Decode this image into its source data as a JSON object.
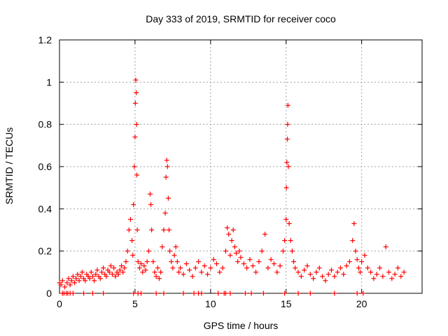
{
  "chart_data": {
    "type": "scatter",
    "title": "Day 333 of 2019, SRMTID for receiver coco",
    "xlabel": "GPS time / hours",
    "ylabel": "SRMTID / TECUs",
    "xlim": [
      0,
      24
    ],
    "ylim": [
      0,
      1.2
    ],
    "xticks": [
      0,
      5,
      10,
      15,
      20
    ],
    "xtick_labels": [
      "0",
      "5",
      "10",
      "15",
      "20"
    ],
    "yticks": [
      0,
      0.2,
      0.4,
      0.6,
      0.8,
      1,
      1.2
    ],
    "ytick_labels": [
      "0",
      "0.2",
      "0.4",
      "0.6",
      "0.8",
      "1",
      "1.2"
    ],
    "grid": true,
    "marker": "+",
    "colors": {
      "points": "#ff0000",
      "grid": "#a0a0a0",
      "axis": "#000000"
    },
    "series": [
      {
        "name": "SRMTID",
        "x": [
          0.0,
          0.1,
          0.2,
          0.35,
          0.5,
          0.6,
          0.7,
          0.8,
          0.9,
          1.0,
          1.1,
          1.2,
          1.3,
          1.4,
          1.5,
          1.6,
          1.7,
          1.8,
          1.9,
          2.0,
          2.1,
          2.2,
          2.3,
          2.4,
          2.5,
          2.6,
          2.7,
          2.8,
          2.9,
          3.0,
          3.1,
          3.2,
          3.3,
          3.4,
          3.5,
          3.6,
          3.7,
          3.8,
          3.9,
          4.0,
          4.1,
          4.2,
          4.3,
          4.4,
          4.5,
          4.6,
          4.7,
          4.8,
          4.85,
          4.9,
          4.95,
          5.0,
          5.02,
          5.05,
          5.08,
          5.1,
          5.12,
          5.15,
          5.2,
          5.3,
          5.4,
          5.5,
          5.6,
          5.7,
          5.8,
          5.9,
          6.0,
          6.05,
          6.1,
          6.2,
          6.3,
          6.4,
          6.5,
          6.6,
          6.7,
          6.8,
          6.9,
          7.0,
          7.05,
          7.1,
          7.15,
          7.2,
          7.25,
          7.3,
          7.4,
          7.5,
          7.6,
          7.7,
          7.8,
          7.9,
          8.0,
          8.2,
          8.4,
          8.6,
          8.8,
          9.0,
          9.2,
          9.4,
          9.6,
          9.8,
          10.0,
          10.2,
          10.4,
          10.6,
          10.8,
          11.0,
          11.1,
          11.2,
          11.3,
          11.4,
          11.5,
          11.6,
          11.7,
          11.8,
          11.9,
          12.0,
          12.2,
          12.4,
          12.6,
          12.8,
          13.0,
          13.2,
          13.4,
          13.6,
          13.8,
          14.0,
          14.2,
          14.4,
          14.6,
          14.8,
          14.9,
          15.0,
          15.02,
          15.05,
          15.08,
          15.1,
          15.12,
          15.15,
          15.2,
          15.3,
          15.4,
          15.5,
          15.6,
          15.8,
          16.0,
          16.2,
          16.4,
          16.6,
          16.8,
          17.0,
          17.2,
          17.4,
          17.6,
          17.8,
          18.0,
          18.2,
          18.4,
          18.6,
          18.8,
          19.0,
          19.2,
          19.4,
          19.5,
          19.6,
          19.7,
          19.8,
          19.9,
          20.0,
          20.2,
          20.4,
          20.6,
          20.8,
          21.0,
          21.2,
          21.4,
          21.6,
          21.8,
          22.0,
          22.2,
          22.4,
          22.6,
          22.8
        ],
        "y": [
          0.05,
          0.04,
          0.06,
          0.03,
          0.05,
          0.07,
          0.04,
          0.06,
          0.08,
          0.05,
          0.07,
          0.09,
          0.06,
          0.08,
          0.1,
          0.07,
          0.06,
          0.09,
          0.08,
          0.07,
          0.1,
          0.08,
          0.06,
          0.09,
          0.11,
          0.08,
          0.07,
          0.1,
          0.12,
          0.09,
          0.08,
          0.11,
          0.1,
          0.13,
          0.09,
          0.12,
          0.08,
          0.1,
          0.09,
          0.11,
          0.13,
          0.1,
          0.12,
          0.15,
          0.2,
          0.3,
          0.35,
          0.25,
          0.18,
          0.42,
          0.6,
          0.74,
          0.9,
          1.01,
          0.95,
          0.8,
          0.56,
          0.3,
          0.15,
          0.12,
          0.14,
          0.1,
          0.13,
          0.11,
          0.15,
          0.2,
          0.47,
          0.42,
          0.3,
          0.15,
          0.1,
          0.08,
          0.12,
          0.07,
          0.1,
          0.22,
          0.3,
          0.38,
          0.55,
          0.63,
          0.6,
          0.45,
          0.3,
          0.2,
          0.15,
          0.12,
          0.18,
          0.22,
          0.15,
          0.1,
          0.12,
          0.09,
          0.14,
          0.11,
          0.08,
          0.12,
          0.15,
          0.1,
          0.13,
          0.09,
          0.12,
          0.16,
          0.14,
          0.1,
          0.12,
          0.2,
          0.31,
          0.28,
          0.18,
          0.25,
          0.3,
          0.22,
          0.19,
          0.15,
          0.2,
          0.17,
          0.14,
          0.12,
          0.16,
          0.13,
          0.1,
          0.15,
          0.2,
          0.28,
          0.12,
          0.16,
          0.14,
          0.1,
          0.13,
          0.2,
          0.25,
          0.35,
          0.5,
          0.62,
          0.73,
          0.8,
          0.89,
          0.6,
          0.33,
          0.25,
          0.2,
          0.15,
          0.12,
          0.1,
          0.08,
          0.11,
          0.13,
          0.09,
          0.07,
          0.1,
          0.12,
          0.08,
          0.06,
          0.09,
          0.11,
          0.08,
          0.1,
          0.12,
          0.09,
          0.13,
          0.15,
          0.25,
          0.33,
          0.2,
          0.16,
          0.12,
          0.1,
          0.15,
          0.18,
          0.12,
          0.1,
          0.07,
          0.09,
          0.12,
          0.08,
          0.22,
          0.1,
          0.07,
          0.09,
          0.12,
          0.08,
          0.1
        ]
      }
    ],
    "zero_points_x": [
      0.2,
      0.3,
      0.45,
      0.55,
      0.7,
      0.9,
      1.6,
      2.2,
      2.9,
      4.9,
      5.2,
      5.4,
      6.4,
      6.9,
      8.2,
      8.9,
      9.2,
      9.4,
      10.5,
      10.9,
      11.0,
      11.3,
      12.3,
      12.7,
      13.5,
      14.9,
      15.8,
      16.6,
      18.2,
      19.7,
      20.1
    ]
  }
}
